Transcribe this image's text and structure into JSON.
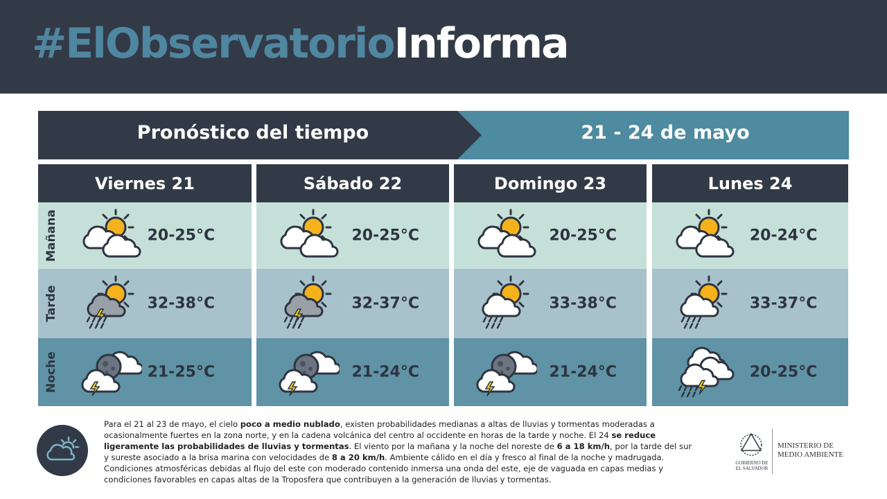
{
  "header": {
    "title_parts": [
      "#ElObservatorio",
      "Informa"
    ]
  },
  "banner": {
    "title": "Pronóstico del tiempo",
    "dates": "21 - 24 de mayo"
  },
  "periods": [
    "Mañana",
    "Tarde",
    "Noche"
  ],
  "days": [
    {
      "name": "Viernes 21",
      "temps": [
        "20-25°C",
        "32-38°C",
        "21-25°C"
      ]
    },
    {
      "name": "Sábado 22",
      "temps": [
        "20-25°C",
        "32-37°C",
        "21-24°C"
      ]
    },
    {
      "name": "Domingo 23",
      "temps": [
        "20-25°C",
        "33-38°C",
        "21-24°C"
      ]
    },
    {
      "name": "Lunes 24",
      "temps": [
        "20-24°C",
        "33-37°C",
        "20-25°C"
      ]
    }
  ],
  "footer": {
    "description": [
      {
        "text": "Para el 21 al 23 de mayo, el cielo ",
        "bold": false
      },
      {
        "text": "poco a medio nublado",
        "bold": true
      },
      {
        "text": ", existen probabilidades medianas a altas de lluvias y tormentas moderadas a ocasionalmente fuertes en la zona norte, y en la cadena volcánica del centro al occidente en horas de la tarde y noche. El 24 ",
        "bold": false
      },
      {
        "text": "se reduce ligeramente las probabilidades de lluvias y tormentas",
        "bold": true
      },
      {
        "text": ". El viento por la mañana y la noche del noreste de ",
        "bold": false
      },
      {
        "text": "6 a 18 km/h",
        "bold": true
      },
      {
        "text": ", por la tarde del sur y sureste asociado a la brisa marina con velocidades de ",
        "bold": false
      },
      {
        "text": "8 a 20 km/h",
        "bold": true
      },
      {
        "text": ". Ambiente cálido en el día y fresco al final de la noche y madrugada. Condiciones atmosféricas debidas al flujo del este con moderado contenido inmersa una onda del este, eje de vaguada en capas medias y condiciones favorables en capas altas de la Troposfera que contribuyen a la generación de lluvias y tormentas.",
        "bold": false
      }
    ],
    "logo": {
      "government": [
        "GOBIERNO DE",
        "EL SALVADOR"
      ],
      "ministry": [
        "MINISTERIO DE",
        "MEDIO AMBIENTE"
      ]
    }
  }
}
